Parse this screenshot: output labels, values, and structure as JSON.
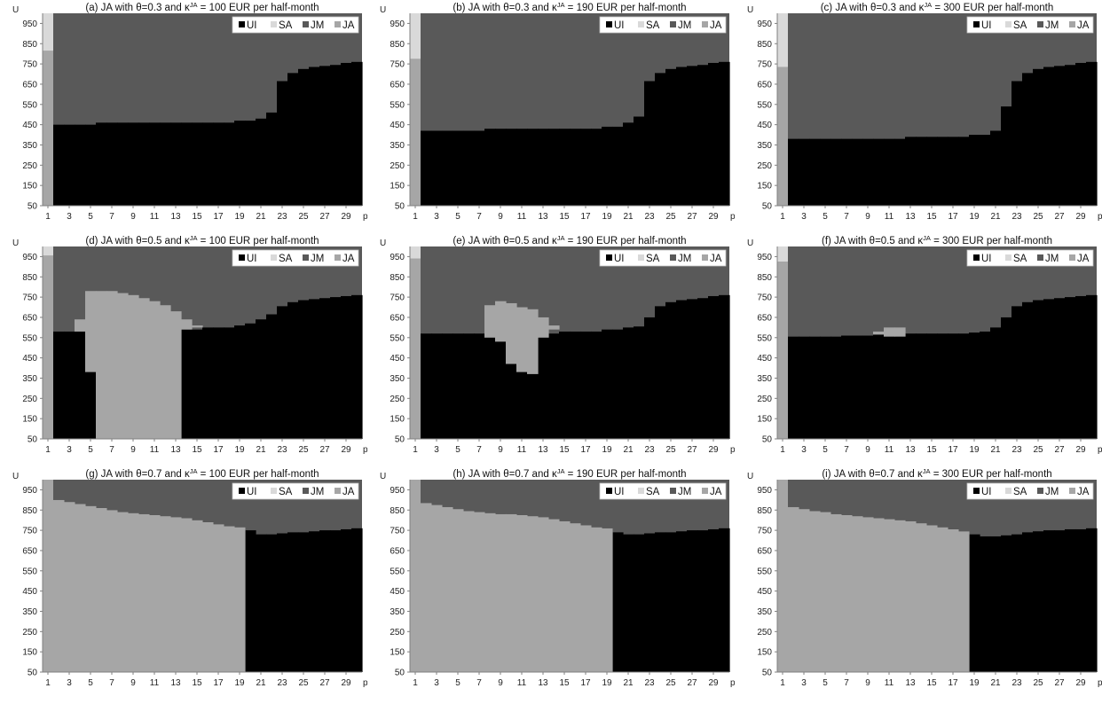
{
  "legend": {
    "items": [
      {
        "key": "UI",
        "label": "UI",
        "color": "#000000"
      },
      {
        "key": "SA",
        "label": "SA",
        "color": "#d9d9d9"
      },
      {
        "key": "JM",
        "label": "JM",
        "color": "#595959"
      },
      {
        "key": "JA",
        "label": "JA",
        "color": "#a6a6a6"
      }
    ]
  },
  "chart_data": [
    {
      "type": "area",
      "title_pre": "(a) JA with θ=0.3 and κ",
      "title_sup": "JA",
      "title_post": " = 100 EUR per half-month",
      "ylabel": "U",
      "xlabel": "p",
      "ylim": [
        50,
        1000
      ],
      "xlim": [
        1,
        30
      ],
      "yticks": [
        "50",
        "150",
        "250",
        "350",
        "450",
        "550",
        "650",
        "750",
        "850",
        "950"
      ],
      "xticks": [
        "1",
        "3",
        "5",
        "7",
        "9",
        "11",
        "13",
        "15",
        "17",
        "19",
        "21",
        "23",
        "25",
        "27",
        "29"
      ],
      "legend_position": "top-right",
      "first_column": {
        "SA_above": 815,
        "JA_below": 815
      },
      "boundary_UI_JM": [
        450,
        450,
        450,
        450,
        450,
        460,
        460,
        460,
        460,
        460,
        460,
        460,
        460,
        460,
        460,
        460,
        460,
        460,
        470,
        470,
        480,
        510,
        665,
        705,
        725,
        735,
        740,
        745,
        755,
        760
      ],
      "JA_regions": []
    },
    {
      "type": "area",
      "title_pre": "(b) JA with θ=0.3 and κ",
      "title_sup": "JA",
      "title_post": " = 190 EUR per half-month",
      "ylabel": "U",
      "xlabel": "p",
      "ylim": [
        50,
        1000
      ],
      "xlim": [
        1,
        30
      ],
      "yticks": [
        "50",
        "150",
        "250",
        "350",
        "450",
        "550",
        "650",
        "750",
        "850",
        "950"
      ],
      "xticks": [
        "1",
        "3",
        "5",
        "7",
        "9",
        "11",
        "13",
        "15",
        "17",
        "19",
        "21",
        "23",
        "25",
        "27",
        "29"
      ],
      "legend_position": "top-right",
      "first_column": {
        "SA_above": 775,
        "JA_below": 775
      },
      "boundary_UI_JM": [
        420,
        420,
        420,
        420,
        420,
        420,
        420,
        430,
        430,
        430,
        430,
        430,
        430,
        430,
        430,
        430,
        430,
        430,
        440,
        440,
        460,
        490,
        665,
        705,
        725,
        735,
        740,
        745,
        755,
        760
      ],
      "JA_regions": []
    },
    {
      "type": "area",
      "title_pre": "(c) JA with θ=0.3 and κ",
      "title_sup": "JA",
      "title_post": " = 300 EUR per half-month",
      "ylabel": "U",
      "xlabel": "p",
      "ylim": [
        50,
        1000
      ],
      "xlim": [
        1,
        30
      ],
      "yticks": [
        "50",
        "150",
        "250",
        "350",
        "450",
        "550",
        "650",
        "750",
        "850",
        "950"
      ],
      "xticks": [
        "1",
        "3",
        "5",
        "7",
        "9",
        "11",
        "13",
        "15",
        "17",
        "19",
        "21",
        "23",
        "25",
        "27",
        "29"
      ],
      "legend_position": "top-right",
      "first_column": {
        "SA_above": 735,
        "JA_below": 735
      },
      "boundary_UI_JM": [
        380,
        380,
        380,
        380,
        380,
        380,
        380,
        380,
        380,
        380,
        380,
        380,
        390,
        390,
        390,
        390,
        390,
        390,
        400,
        400,
        420,
        540,
        665,
        705,
        725,
        735,
        740,
        745,
        755,
        760
      ],
      "JA_regions": []
    },
    {
      "type": "area",
      "title_pre": "(d) JA with θ=0.5 and κ",
      "title_sup": "JA",
      "title_post": " = 100 EUR per half-month",
      "ylabel": "U",
      "xlabel": "p",
      "ylim": [
        50,
        1000
      ],
      "xlim": [
        1,
        30
      ],
      "yticks": [
        "50",
        "150",
        "250",
        "350",
        "450",
        "550",
        "650",
        "750",
        "850",
        "950"
      ],
      "xticks": [
        "1",
        "3",
        "5",
        "7",
        "9",
        "11",
        "13",
        "15",
        "17",
        "19",
        "21",
        "23",
        "25",
        "27",
        "29"
      ],
      "legend_position": "top-right",
      "first_column": {
        "SA_above": 955,
        "JA_below": 955
      },
      "boundary_UI_JM": [
        580,
        580,
        580,
        580,
        580,
        580,
        580,
        580,
        580,
        580,
        580,
        580,
        580,
        590,
        590,
        600,
        600,
        600,
        610,
        620,
        640,
        665,
        705,
        725,
        735,
        740,
        745,
        750,
        755,
        760
      ],
      "JA_regions": [
        {
          "p": 4,
          "low": 580,
          "high": 640
        },
        {
          "p": 5,
          "low": 380,
          "high": 780
        },
        {
          "p": 6,
          "low": 50,
          "high": 780
        },
        {
          "p": 7,
          "low": 50,
          "high": 780
        },
        {
          "p": 8,
          "low": 50,
          "high": 770
        },
        {
          "p": 9,
          "low": 50,
          "high": 760
        },
        {
          "p": 10,
          "low": 50,
          "high": 745
        },
        {
          "p": 11,
          "low": 50,
          "high": 730
        },
        {
          "p": 12,
          "low": 50,
          "high": 710
        },
        {
          "p": 13,
          "low": 50,
          "high": 680
        },
        {
          "p": 14,
          "low": 590,
          "high": 640
        },
        {
          "p": 15,
          "low": 600,
          "high": 610
        }
      ]
    },
    {
      "type": "area",
      "title_pre": "(e) JA with θ=0.5 and κ",
      "title_sup": "JA",
      "title_post": " = 190 EUR per half-month",
      "ylabel": "U",
      "xlabel": "p",
      "ylim": [
        50,
        1000
      ],
      "xlim": [
        1,
        30
      ],
      "yticks": [
        "50",
        "150",
        "250",
        "350",
        "450",
        "550",
        "650",
        "750",
        "850",
        "950"
      ],
      "xticks": [
        "1",
        "3",
        "5",
        "7",
        "9",
        "11",
        "13",
        "15",
        "17",
        "19",
        "21",
        "23",
        "25",
        "27",
        "29"
      ],
      "legend_position": "top-right",
      "first_column": {
        "SA_above": 940,
        "JA_below": 940
      },
      "boundary_UI_JM": [
        570,
        570,
        570,
        570,
        570,
        570,
        570,
        570,
        570,
        570,
        570,
        570,
        570,
        570,
        580,
        580,
        580,
        580,
        590,
        590,
        600,
        605,
        650,
        705,
        725,
        735,
        740,
        745,
        755,
        760
      ],
      "JA_regions": [
        {
          "p": 8,
          "low": 550,
          "high": 710
        },
        {
          "p": 9,
          "low": 530,
          "high": 730
        },
        {
          "p": 10,
          "low": 420,
          "high": 720
        },
        {
          "p": 11,
          "low": 380,
          "high": 700
        },
        {
          "p": 12,
          "low": 370,
          "high": 690
        },
        {
          "p": 13,
          "low": 550,
          "high": 650
        },
        {
          "p": 14,
          "low": 590,
          "high": 610
        }
      ]
    },
    {
      "type": "area",
      "title_pre": "(f) JA with θ=0.5 and κ",
      "title_sup": "JA",
      "title_post": " = 300 EUR per half-month",
      "ylabel": "U",
      "xlabel": "p",
      "ylim": [
        50,
        1000
      ],
      "xlim": [
        1,
        30
      ],
      "yticks": [
        "50",
        "150",
        "250",
        "350",
        "450",
        "550",
        "650",
        "750",
        "850",
        "950"
      ],
      "xticks": [
        "1",
        "3",
        "5",
        "7",
        "9",
        "11",
        "13",
        "15",
        "17",
        "19",
        "21",
        "23",
        "25",
        "27",
        "29"
      ],
      "legend_position": "top-right",
      "first_column": {
        "SA_above": 925,
        "JA_below": 925
      },
      "boundary_UI_JM": [
        545,
        555,
        555,
        555,
        555,
        555,
        560,
        560,
        560,
        565,
        565,
        570,
        570,
        570,
        570,
        570,
        570,
        570,
        575,
        580,
        600,
        650,
        705,
        725,
        735,
        740,
        745,
        750,
        755,
        760
      ],
      "JA_regions": [
        {
          "p": 10,
          "low": 565,
          "high": 580
        },
        {
          "p": 11,
          "low": 555,
          "high": 600
        },
        {
          "p": 12,
          "low": 555,
          "high": 600
        }
      ]
    },
    {
      "type": "area",
      "title_pre": "(g) JA with θ=0.7 and κ",
      "title_sup": "JA",
      "title_post": " = 100 EUR per half-month",
      "ylabel": "U",
      "xlabel": "p",
      "ylim": [
        50,
        1000
      ],
      "xlim": [
        1,
        30
      ],
      "yticks": [
        "50",
        "150",
        "250",
        "350",
        "450",
        "550",
        "650",
        "750",
        "850",
        "950"
      ],
      "xticks": [
        "1",
        "3",
        "5",
        "7",
        "9",
        "11",
        "13",
        "15",
        "17",
        "19",
        "21",
        "23",
        "25",
        "27",
        "29"
      ],
      "legend_position": "top-right",
      "first_column": {
        "SA_above": 1000,
        "JA_below": 1000
      },
      "boundary_UI_JM": [
        900,
        900,
        890,
        880,
        870,
        860,
        850,
        840,
        835,
        830,
        825,
        820,
        815,
        810,
        800,
        790,
        780,
        770,
        765,
        750,
        730,
        730,
        735,
        740,
        740,
        745,
        750,
        750,
        755,
        760
      ],
      "JA_regions": [
        {
          "p": 2,
          "low": 50,
          "high": 900
        },
        {
          "p": 3,
          "low": 50,
          "high": 890
        },
        {
          "p": 4,
          "low": 50,
          "high": 880
        },
        {
          "p": 5,
          "low": 50,
          "high": 870
        },
        {
          "p": 6,
          "low": 50,
          "high": 860
        },
        {
          "p": 7,
          "low": 50,
          "high": 850
        },
        {
          "p": 8,
          "low": 50,
          "high": 840
        },
        {
          "p": 9,
          "low": 50,
          "high": 835
        },
        {
          "p": 10,
          "low": 50,
          "high": 830
        },
        {
          "p": 11,
          "low": 50,
          "high": 825
        },
        {
          "p": 12,
          "low": 50,
          "high": 820
        },
        {
          "p": 13,
          "low": 50,
          "high": 815
        },
        {
          "p": 14,
          "low": 50,
          "high": 810
        },
        {
          "p": 15,
          "low": 50,
          "high": 800
        },
        {
          "p": 16,
          "low": 50,
          "high": 790
        },
        {
          "p": 17,
          "low": 50,
          "high": 780
        },
        {
          "p": 18,
          "low": 50,
          "high": 770
        },
        {
          "p": 19,
          "low": 50,
          "high": 765
        }
      ]
    },
    {
      "type": "area",
      "title_pre": "(h) JA with θ=0.7 and κ",
      "title_sup": "JA",
      "title_post": " = 190 EUR per half-month",
      "ylabel": "U",
      "xlabel": "p",
      "ylim": [
        50,
        1000
      ],
      "xlim": [
        1,
        30
      ],
      "yticks": [
        "50",
        "150",
        "250",
        "350",
        "450",
        "550",
        "650",
        "750",
        "850",
        "950"
      ],
      "xticks": [
        "1",
        "3",
        "5",
        "7",
        "9",
        "11",
        "13",
        "15",
        "17",
        "19",
        "21",
        "23",
        "25",
        "27",
        "29"
      ],
      "legend_position": "top-right",
      "first_column": {
        "SA_above": 1000,
        "JA_below": 1000
      },
      "boundary_UI_JM": [
        885,
        885,
        875,
        865,
        855,
        845,
        840,
        835,
        830,
        830,
        825,
        820,
        815,
        805,
        795,
        785,
        775,
        765,
        760,
        740,
        730,
        730,
        735,
        740,
        740,
        745,
        750,
        750,
        755,
        760
      ],
      "JA_regions": [
        {
          "p": 2,
          "low": 50,
          "high": 885
        },
        {
          "p": 3,
          "low": 50,
          "high": 875
        },
        {
          "p": 4,
          "low": 50,
          "high": 865
        },
        {
          "p": 5,
          "low": 50,
          "high": 855
        },
        {
          "p": 6,
          "low": 50,
          "high": 845
        },
        {
          "p": 7,
          "low": 50,
          "high": 840
        },
        {
          "p": 8,
          "low": 50,
          "high": 835
        },
        {
          "p": 9,
          "low": 50,
          "high": 830
        },
        {
          "p": 10,
          "low": 50,
          "high": 830
        },
        {
          "p": 11,
          "low": 50,
          "high": 825
        },
        {
          "p": 12,
          "low": 50,
          "high": 820
        },
        {
          "p": 13,
          "low": 50,
          "high": 815
        },
        {
          "p": 14,
          "low": 50,
          "high": 805
        },
        {
          "p": 15,
          "low": 50,
          "high": 795
        },
        {
          "p": 16,
          "low": 50,
          "high": 785
        },
        {
          "p": 17,
          "low": 50,
          "high": 775
        },
        {
          "p": 18,
          "low": 50,
          "high": 765
        },
        {
          "p": 19,
          "low": 50,
          "high": 760
        }
      ]
    },
    {
      "type": "area",
      "title_pre": "(i) JA with θ=0.7 and κ",
      "title_sup": "JA",
      "title_post": " = 300 EUR per half-month",
      "ylabel": "U",
      "xlabel": "p",
      "ylim": [
        50,
        1000
      ],
      "xlim": [
        1,
        30
      ],
      "yticks": [
        "50",
        "150",
        "250",
        "350",
        "450",
        "550",
        "650",
        "750",
        "850",
        "950"
      ],
      "xticks": [
        "1",
        "3",
        "5",
        "7",
        "9",
        "11",
        "13",
        "15",
        "17",
        "19",
        "21",
        "23",
        "25",
        "27",
        "29"
      ],
      "legend_position": "top-right",
      "first_column": {
        "SA_above": 1000,
        "JA_below": 1000
      },
      "boundary_UI_JM": [
        865,
        865,
        855,
        845,
        840,
        830,
        825,
        820,
        815,
        810,
        805,
        800,
        795,
        785,
        775,
        765,
        755,
        745,
        730,
        720,
        720,
        725,
        730,
        740,
        745,
        750,
        750,
        755,
        755,
        760
      ],
      "JA_regions": [
        {
          "p": 2,
          "low": 50,
          "high": 865
        },
        {
          "p": 3,
          "low": 50,
          "high": 855
        },
        {
          "p": 4,
          "low": 50,
          "high": 845
        },
        {
          "p": 5,
          "low": 50,
          "high": 840
        },
        {
          "p": 6,
          "low": 50,
          "high": 830
        },
        {
          "p": 7,
          "low": 50,
          "high": 825
        },
        {
          "p": 8,
          "low": 50,
          "high": 820
        },
        {
          "p": 9,
          "low": 50,
          "high": 815
        },
        {
          "p": 10,
          "low": 50,
          "high": 810
        },
        {
          "p": 11,
          "low": 50,
          "high": 805
        },
        {
          "p": 12,
          "low": 50,
          "high": 800
        },
        {
          "p": 13,
          "low": 50,
          "high": 795
        },
        {
          "p": 14,
          "low": 50,
          "high": 785
        },
        {
          "p": 15,
          "low": 50,
          "high": 775
        },
        {
          "p": 16,
          "low": 50,
          "high": 765
        },
        {
          "p": 17,
          "low": 50,
          "high": 755
        },
        {
          "p": 18,
          "low": 50,
          "high": 745
        }
      ]
    }
  ]
}
